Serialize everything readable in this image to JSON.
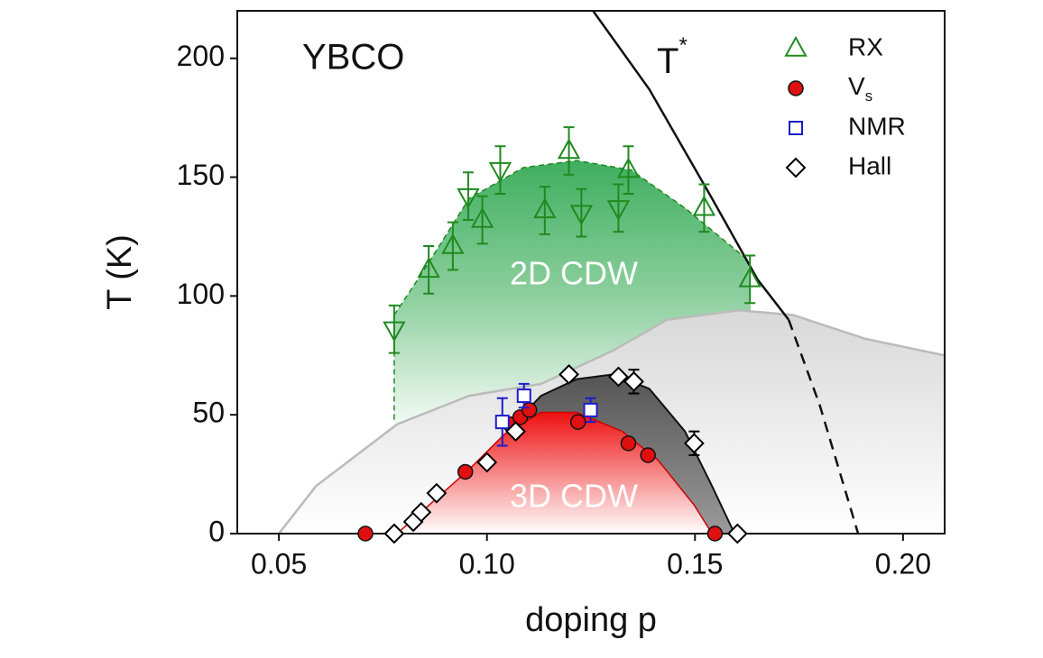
{
  "chart_data": {
    "type": "scatter",
    "title": "YBCO",
    "xlabel": "doping p",
    "ylabel": "T (K)",
    "xlim": [
      0.04,
      0.21
    ],
    "ylim": [
      0,
      220
    ],
    "xticks": [
      {
        "value": 0.05,
        "label": "0.05"
      },
      {
        "value": 0.1,
        "label": "0.10"
      },
      {
        "value": 0.15,
        "label": "0.15"
      },
      {
        "value": 0.2,
        "label": "0.20"
      }
    ],
    "yticks": [
      0,
      50,
      100,
      150,
      200
    ],
    "annotations": {
      "tstar": "T*",
      "cdw2d": "2D CDW",
      "cdw3d": "3D CDW"
    },
    "series": [
      {
        "name": "RX",
        "color": "#1f8a1f",
        "marker": "triangle",
        "x": [
          0.0777,
          0.086,
          0.0918,
          0.0955,
          0.0989,
          0.1032,
          0.1139,
          0.1197,
          0.1227,
          0.1316,
          0.134,
          0.1522,
          0.1632
        ],
        "values": [
          86,
          111,
          121,
          142,
          132,
          153,
          136,
          161,
          135,
          137,
          153,
          137,
          107
        ],
        "errors": [
          10,
          10,
          10,
          10,
          10,
          10,
          10,
          10,
          10,
          10,
          10,
          10,
          10
        ],
        "directions": [
          "down",
          "up",
          "up",
          "down",
          "up",
          "down",
          "up",
          "up",
          "down",
          "down",
          "up",
          "up",
          "up"
        ]
      },
      {
        "name": "Vs",
        "color": "#e01010",
        "marker": "circle",
        "x": [
          0.0708,
          0.0948,
          0.1056,
          0.108,
          0.1102,
          0.1219,
          0.134,
          0.1387,
          0.1548
        ],
        "values": [
          0,
          26,
          46,
          49,
          52,
          47,
          38,
          33,
          0
        ]
      },
      {
        "name": "NMR",
        "color": "#1c1ccc",
        "marker": "square",
        "x": [
          0.1037,
          0.1089,
          0.1249
        ],
        "values": [
          47,
          58,
          52
        ],
        "errors": [
          10,
          5,
          5
        ]
      },
      {
        "name": "Hall",
        "color": "#000000",
        "marker": "diamond",
        "x": [
          0.0777,
          0.0823,
          0.0842,
          0.0879,
          0.1,
          0.1069,
          0.1197,
          0.1316,
          0.1353,
          0.1498,
          0.1602
        ],
        "values": [
          0,
          5,
          9,
          17,
          30,
          43,
          67,
          66,
          64,
          38,
          0
        ],
        "errors": [
          null,
          null,
          null,
          null,
          null,
          null,
          null,
          null,
          5,
          5,
          null
        ]
      }
    ],
    "regions": {
      "cdw2d": {
        "x": [
          0.0777,
          0.0849,
          0.0957,
          0.1087,
          0.1216,
          0.1346,
          0.1476,
          0.1628,
          0.165,
          0.0777
        ],
        "y": [
          92,
          111,
          141,
          154,
          157,
          153,
          137,
          115,
          40,
          40
        ]
      },
      "tc": {
        "x": [
          0.05,
          0.0589,
          0.0784,
          0.0957,
          0.113,
          0.1303,
          0.1433,
          0.1606,
          0.1736,
          0.1909,
          0.21,
          0.21,
          0.05
        ],
        "y": [
          0,
          20,
          46,
          58,
          63,
          77,
          90,
          94,
          92,
          82,
          75,
          0,
          0
        ]
      },
      "hall": {
        "x": [
          0.107,
          0.113,
          0.1216,
          0.1303,
          0.139,
          0.1476,
          0.1541,
          0.1595,
          0.107
        ],
        "y": [
          47,
          58,
          65,
          67,
          61,
          43,
          20,
          0,
          0
        ]
      },
      "cdw3d": {
        "x": [
          0.0784,
          0.0957,
          0.1043,
          0.113,
          0.1216,
          0.1325,
          0.1411,
          0.1498,
          0.1541
        ],
        "y": [
          0,
          27,
          42,
          51,
          51,
          43,
          31,
          12,
          0
        ]
      }
    },
    "tstar_curve": {
      "x": [
        0.1255,
        0.139,
        0.1541,
        0.165,
        0.1725
      ],
      "y": [
        220,
        187,
        141,
        107,
        90
      ]
    },
    "tstar_dashed": {
      "x": [
        0.1725,
        0.18,
        0.1892
      ],
      "y": [
        90,
        54,
        0
      ]
    },
    "cdw2d_edge": {
      "x": [
        0.0777,
        0.0777
      ],
      "y": [
        92,
        47
      ]
    }
  }
}
